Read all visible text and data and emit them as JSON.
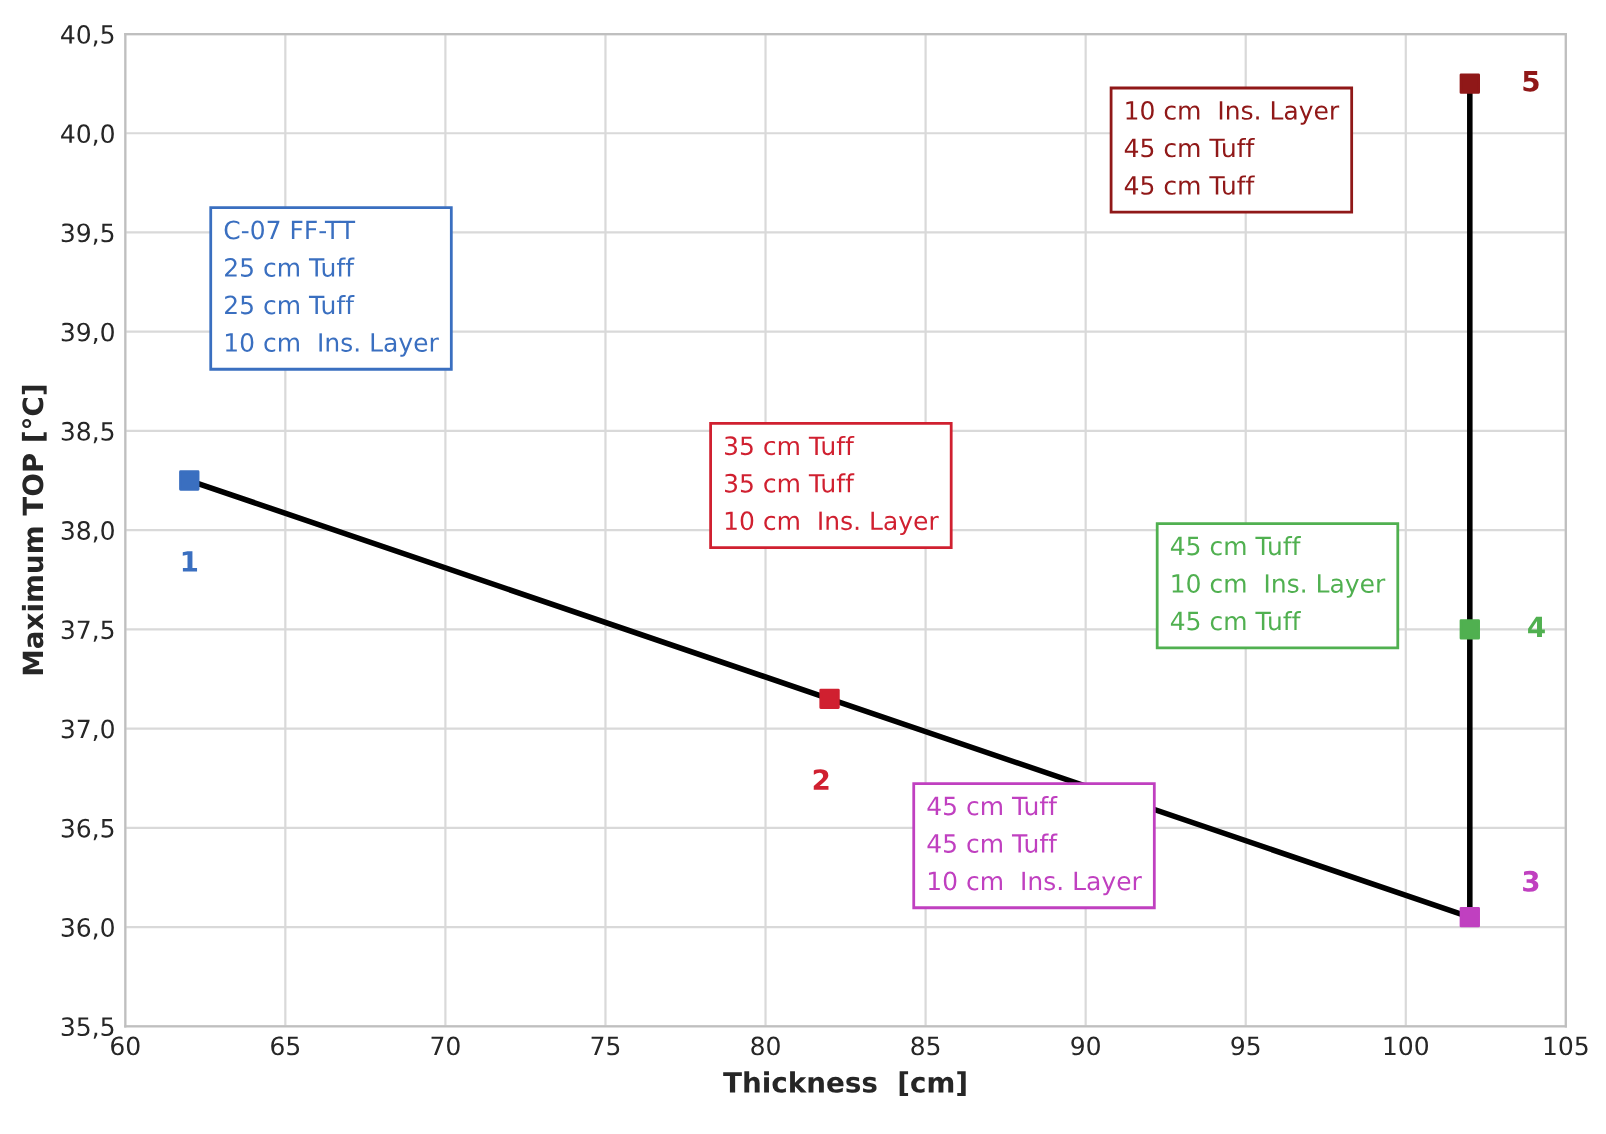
{
  "chart_data": {
    "type": "line",
    "xlabel": "Thickness  [cm]",
    "ylabel": "Maximum TOP [°C]",
    "series": [
      {
        "color": "#000000",
        "marker": "square",
        "x": [
          62,
          82,
          102,
          102,
          102
        ],
        "values": [
          38.25,
          37.15,
          36.05,
          37.5,
          40.25
        ],
        "colors": [
          "#3a6fc0",
          "#d02030",
          "#c040c0",
          "#50b050",
          "#901818"
        ]
      }
    ],
    "xlim": [
      60,
      105
    ],
    "xticks": [
      60,
      65,
      70,
      75,
      80,
      85,
      90,
      95,
      100,
      105
    ],
    "ylim": [
      35.5,
      40.5
    ],
    "yticks": [
      {
        "value": 35.5,
        "label": "35,5"
      },
      {
        "value": 36.0,
        "label": "36,0"
      },
      {
        "value": 36.5,
        "label": "36,5"
      },
      {
        "value": 37.0,
        "label": "37,0"
      },
      {
        "value": 37.5,
        "label": "37,5"
      },
      {
        "value": 38.0,
        "label": "38,0"
      },
      {
        "value": 38.5,
        "label": "38,5"
      },
      {
        "value": 39.0,
        "label": "39,0"
      },
      {
        "value": 39.5,
        "label": "39,5"
      },
      {
        "value": 40.0,
        "label": "40,0"
      },
      {
        "value": 40.5,
        "label": "40,5"
      }
    ],
    "grid": true,
    "annotations": [
      {
        "text": "1",
        "x": 62,
        "y": 38.25
      },
      {
        "text": "2",
        "x": 82,
        "y": 37.15
      },
      {
        "text": "3",
        "x": 102,
        "y": 36.05
      },
      {
        "text": "4",
        "x": 102,
        "y": 37.5
      },
      {
        "text": "5",
        "x": 102,
        "y": 40.25
      },
      "C-07 FF-TT\n25 cm Tuff\n25 cm Tuff\n10 cm  Ins. Layer",
      "35 cm Tuff\n35 cm Tuff\n10 cm  Ins. Layer",
      "45 cm Tuff\n45 cm Tuff\n10 cm  Ins. Layer",
      "45 cm Tuff\n10 cm  Ins. Layer\n45 cm Tuff",
      "10 cm  Ins. Layer\n45 cm Tuff\n45 cm Tuff"
    ]
  }
}
